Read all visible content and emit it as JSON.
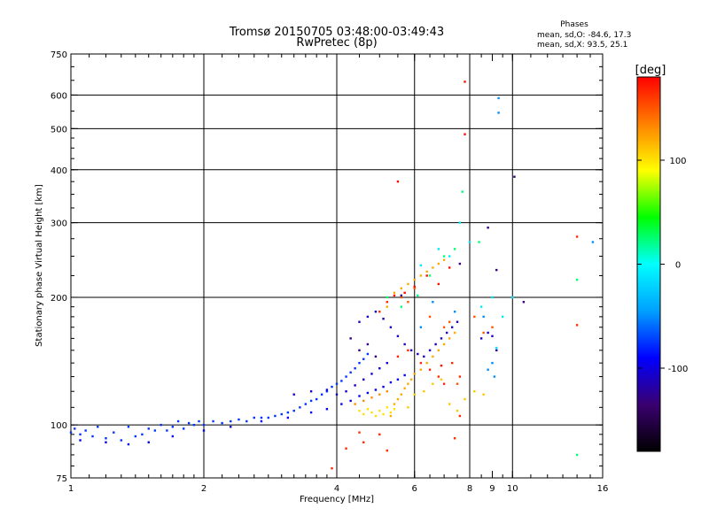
{
  "chart_data": {
    "type": "scatter",
    "title": "Tromsø 20150705 03:48:00-03:49:43",
    "subtitle": "RwPretec (8p)",
    "xlabel": "Frequency [MHz]",
    "ylabel": "Stationary phase Virtual Height [km]",
    "x_scale": "log",
    "y_scale": "log",
    "xlim": [
      1,
      16
    ],
    "ylim": [
      75,
      750
    ],
    "x_ticks": [
      1,
      2,
      4,
      6,
      8,
      9,
      10,
      16
    ],
    "x_tick_labels": [
      "1",
      "2",
      "4",
      "6",
      "8",
      "9",
      "10",
      "16"
    ],
    "x_gridlines": [
      2,
      4,
      6,
      8,
      10
    ],
    "y_ticks": [
      75,
      100,
      200,
      300,
      400,
      500,
      600,
      750
    ],
    "y_tick_labels": [
      "75",
      "100",
      "200",
      "300",
      "400",
      "500",
      "600",
      "750"
    ],
    "y_gridlines": [
      100,
      200,
      300,
      400,
      500,
      600
    ],
    "grid": true,
    "phase_stats": {
      "title": "Phases",
      "line_o": "mean, sd,O: -84.6, 17.3",
      "line_x": "mean, sd,X:  93.5, 25.1"
    },
    "colorbar": {
      "label": "[deg]",
      "range": [
        -180,
        180
      ],
      "tick_values": [
        100,
        0,
        -100
      ],
      "tick_labels": [
        "100",
        "0",
        "-100"
      ],
      "colors": [
        "#000000",
        "#3a0070",
        "#0000ff",
        "#00a0ff",
        "#00ffff",
        "#00ff00",
        "#ffff00",
        "#ff8000",
        "#ff0000"
      ]
    },
    "points": [
      [
        1.0,
        96,
        -75
      ],
      [
        1.02,
        98,
        -75
      ],
      [
        1.05,
        95,
        -75
      ],
      [
        1.08,
        97,
        -75
      ],
      [
        1.12,
        94,
        -75
      ],
      [
        1.15,
        99,
        -75
      ],
      [
        1.2,
        93,
        -75
      ],
      [
        1.25,
        96,
        -75
      ],
      [
        1.3,
        92,
        -75
      ],
      [
        1.35,
        99,
        -75
      ],
      [
        1.4,
        94,
        -75
      ],
      [
        1.45,
        95,
        -75
      ],
      [
        1.5,
        98,
        -75
      ],
      [
        1.55,
        97,
        -75
      ],
      [
        1.6,
        100,
        -75
      ],
      [
        1.65,
        97,
        -75
      ],
      [
        1.7,
        99,
        -75
      ],
      [
        1.75,
        102,
        -75
      ],
      [
        1.8,
        98,
        -75
      ],
      [
        1.85,
        101,
        -75
      ],
      [
        1.9,
        100,
        -75
      ],
      [
        1.95,
        102,
        -75
      ],
      [
        2.0,
        100,
        -75
      ],
      [
        2.1,
        102,
        -75
      ],
      [
        2.2,
        101,
        -75
      ],
      [
        2.3,
        102,
        -75
      ],
      [
        2.4,
        103,
        -75
      ],
      [
        2.5,
        102,
        -75
      ],
      [
        2.6,
        104,
        -75
      ],
      [
        2.7,
        104,
        -75
      ],
      [
        2.8,
        104,
        -75
      ],
      [
        2.9,
        105,
        -75
      ],
      [
        3.0,
        106,
        -75
      ],
      [
        3.1,
        107,
        -75
      ],
      [
        3.2,
        108,
        -75
      ],
      [
        3.3,
        110,
        -75
      ],
      [
        3.4,
        112,
        -75
      ],
      [
        3.5,
        114,
        -75
      ],
      [
        3.6,
        115,
        -75
      ],
      [
        3.7,
        118,
        -75
      ],
      [
        3.8,
        120,
        -75
      ],
      [
        3.9,
        123,
        -75
      ],
      [
        4.0,
        125,
        -75
      ],
      [
        4.1,
        127,
        -75
      ],
      [
        4.2,
        130,
        -75
      ],
      [
        4.3,
        133,
        -75
      ],
      [
        4.4,
        136,
        -75
      ],
      [
        4.5,
        140,
        -75
      ],
      [
        4.6,
        143,
        -75
      ],
      [
        4.7,
        147,
        -75
      ],
      [
        1.05,
        92,
        -95
      ],
      [
        1.2,
        91,
        -95
      ],
      [
        1.35,
        90,
        -95
      ],
      [
        1.5,
        91,
        -95
      ],
      [
        1.7,
        94,
        -95
      ],
      [
        2.0,
        97,
        -95
      ],
      [
        2.3,
        99,
        -95
      ],
      [
        2.7,
        102,
        -95
      ],
      [
        3.1,
        104,
        -95
      ],
      [
        3.5,
        107,
        -95
      ],
      [
        3.8,
        109,
        -95
      ],
      [
        4.1,
        112,
        -95
      ],
      [
        4.3,
        114,
        -95
      ],
      [
        4.5,
        117,
        -95
      ],
      [
        4.7,
        119,
        -95
      ],
      [
        4.9,
        121,
        -95
      ],
      [
        5.1,
        123,
        -95
      ],
      [
        5.3,
        126,
        -95
      ],
      [
        5.5,
        128,
        -95
      ],
      [
        5.7,
        131,
        -95
      ],
      [
        3.2,
        118,
        -105
      ],
      [
        3.5,
        120,
        -105
      ],
      [
        3.8,
        121,
        -105
      ],
      [
        4.0,
        118,
        -105
      ],
      [
        4.2,
        120,
        -105
      ],
      [
        4.4,
        124,
        -105
      ],
      [
        4.6,
        128,
        -105
      ],
      [
        4.8,
        132,
        -105
      ],
      [
        5.0,
        136,
        -105
      ],
      [
        5.2,
        140,
        -105
      ],
      [
        4.5,
        175,
        -110
      ],
      [
        4.7,
        180,
        -110
      ],
      [
        4.9,
        185,
        -110
      ],
      [
        5.1,
        178,
        -110
      ],
      [
        5.3,
        170,
        -110
      ],
      [
        5.5,
        162,
        -110
      ],
      [
        5.7,
        155,
        -110
      ],
      [
        5.9,
        150,
        -110
      ],
      [
        6.1,
        147,
        -110
      ],
      [
        6.3,
        145,
        -110
      ],
      [
        6.5,
        150,
        -110
      ],
      [
        6.7,
        155,
        -110
      ],
      [
        6.9,
        160,
        -110
      ],
      [
        7.1,
        165,
        -110
      ],
      [
        7.3,
        170,
        -110
      ],
      [
        7.5,
        175,
        -110
      ],
      [
        8.5,
        160,
        -110
      ],
      [
        8.8,
        165,
        -110
      ],
      [
        9.0,
        162,
        -110
      ],
      [
        9.2,
        150,
        -110
      ],
      [
        4.5,
        108,
        100
      ],
      [
        4.6,
        106,
        100
      ],
      [
        4.7,
        109,
        100
      ],
      [
        4.8,
        107,
        100
      ],
      [
        4.9,
        105,
        100
      ],
      [
        5.0,
        108,
        100
      ],
      [
        5.1,
        106,
        100
      ],
      [
        5.2,
        110,
        100
      ],
      [
        5.3,
        107,
        100
      ],
      [
        5.4,
        109,
        100
      ],
      [
        5.3,
        105,
        120
      ],
      [
        5.4,
        112,
        120
      ],
      [
        5.5,
        115,
        120
      ],
      [
        5.6,
        118,
        120
      ],
      [
        5.7,
        122,
        120
      ],
      [
        5.8,
        125,
        120
      ],
      [
        5.9,
        128,
        120
      ],
      [
        6.0,
        132,
        120
      ],
      [
        6.2,
        135,
        120
      ],
      [
        6.4,
        140,
        120
      ],
      [
        6.6,
        145,
        120
      ],
      [
        6.8,
        150,
        120
      ],
      [
        7.0,
        155,
        120
      ],
      [
        7.2,
        160,
        120
      ],
      [
        7.4,
        165,
        120
      ],
      [
        5.2,
        190,
        120
      ],
      [
        5.4,
        205,
        120
      ],
      [
        5.6,
        210,
        120
      ],
      [
        5.8,
        215,
        120
      ],
      [
        6.0,
        220,
        120
      ],
      [
        6.2,
        225,
        120
      ],
      [
        6.4,
        230,
        120
      ],
      [
        6.6,
        235,
        120
      ],
      [
        6.8,
        240,
        120
      ],
      [
        7.0,
        245,
        120
      ],
      [
        4.4,
        112,
        130
      ],
      [
        4.6,
        114,
        130
      ],
      [
        4.8,
        116,
        130
      ],
      [
        5.0,
        118,
        130
      ],
      [
        5.2,
        120,
        130
      ],
      [
        5.6,
        200,
        150
      ],
      [
        5.8,
        195,
        150
      ],
      [
        6.0,
        210,
        150
      ],
      [
        6.5,
        180,
        150
      ],
      [
        7.0,
        170,
        150
      ],
      [
        7.2,
        175,
        150
      ],
      [
        7.5,
        125,
        150
      ],
      [
        8.2,
        180,
        150
      ],
      [
        8.6,
        165,
        150
      ],
      [
        9.0,
        170,
        150
      ],
      [
        5.0,
        185,
        165
      ],
      [
        5.2,
        195,
        165
      ],
      [
        5.5,
        145,
        165
      ],
      [
        5.8,
        150,
        165
      ],
      [
        6.2,
        140,
        165
      ],
      [
        6.5,
        135,
        165
      ],
      [
        6.8,
        130,
        165
      ],
      [
        7.0,
        125,
        165
      ],
      [
        7.3,
        140,
        165
      ],
      [
        7.6,
        130,
        165
      ],
      [
        5.4,
        202,
        175
      ],
      [
        5.7,
        205,
        175
      ],
      [
        6.0,
        212,
        175
      ],
      [
        6.4,
        225,
        175
      ],
      [
        6.8,
        215,
        175
      ],
      [
        7.2,
        235,
        175
      ],
      [
        7.8,
        645,
        175
      ],
      [
        7.8,
        485,
        175
      ],
      [
        5.5,
        375,
        175
      ],
      [
        6.9,
        138,
        175
      ],
      [
        5.2,
        200,
        25
      ],
      [
        5.6,
        190,
        25
      ],
      [
        6.1,
        202,
        25
      ],
      [
        6.5,
        225,
        25
      ],
      [
        7.0,
        250,
        25
      ],
      [
        7.4,
        260,
        25
      ],
      [
        7.7,
        355,
        25
      ],
      [
        8.4,
        270,
        25
      ],
      [
        14.0,
        220,
        25
      ],
      [
        14.0,
        85,
        25
      ],
      [
        6.2,
        238,
        -10
      ],
      [
        6.8,
        260,
        -10
      ],
      [
        7.2,
        250,
        -10
      ],
      [
        7.6,
        300,
        -10
      ],
      [
        8.0,
        270,
        -10
      ],
      [
        8.5,
        190,
        -10
      ],
      [
        9.0,
        200,
        -10
      ],
      [
        9.5,
        180,
        -10
      ],
      [
        10.0,
        200,
        -10
      ],
      [
        9.2,
        152,
        -10
      ],
      [
        9.3,
        590,
        -50
      ],
      [
        9.3,
        545,
        -50
      ],
      [
        9.0,
        140,
        -50
      ],
      [
        9.1,
        130,
        -50
      ],
      [
        8.8,
        135,
        -50
      ],
      [
        15.2,
        270,
        -50
      ],
      [
        8.6,
        180,
        -50
      ],
      [
        6.6,
        195,
        -50
      ],
      [
        7.4,
        185,
        -50
      ],
      [
        6.2,
        170,
        -50
      ],
      [
        10.1,
        385,
        -130
      ],
      [
        10.6,
        195,
        -130
      ],
      [
        9.2,
        232,
        -130
      ],
      [
        8.8,
        292,
        -130
      ],
      [
        7.6,
        240,
        -130
      ],
      [
        5.6,
        202,
        -130
      ],
      [
        4.3,
        160,
        -130
      ],
      [
        4.5,
        150,
        -130
      ],
      [
        4.7,
        155,
        -130
      ],
      [
        4.9,
        145,
        -130
      ],
      [
        4.2,
        88,
        165
      ],
      [
        4.6,
        91,
        165
      ],
      [
        5.0,
        95,
        165
      ],
      [
        5.2,
        87,
        165
      ],
      [
        3.9,
        79,
        165
      ],
      [
        4.5,
        96,
        165
      ],
      [
        7.4,
        93,
        165
      ],
      [
        7.6,
        105,
        165
      ],
      [
        14.0,
        172,
        165
      ],
      [
        14.0,
        278,
        165
      ],
      [
        5.8,
        110,
        110
      ],
      [
        6.0,
        118,
        110
      ],
      [
        6.3,
        120,
        110
      ],
      [
        6.6,
        125,
        110
      ],
      [
        6.9,
        128,
        110
      ],
      [
        7.2,
        112,
        110
      ],
      [
        7.5,
        108,
        110
      ],
      [
        7.8,
        115,
        110
      ],
      [
        8.2,
        120,
        110
      ],
      [
        8.6,
        118,
        110
      ]
    ]
  }
}
